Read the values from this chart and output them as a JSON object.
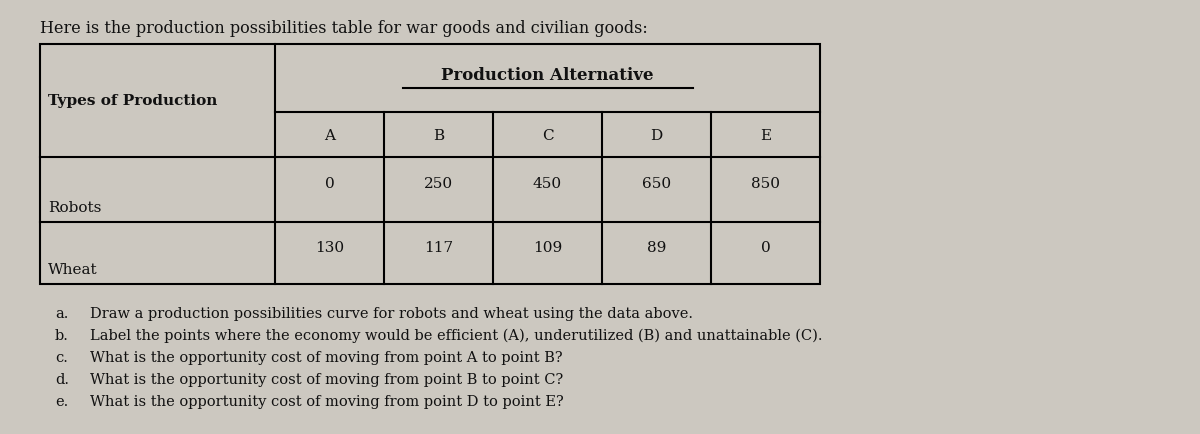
{
  "title": "Here is the production possibilities table for war goods and civilian goods:",
  "header_span": "Production Alternative",
  "col_header": "Types of Production",
  "alternatives": [
    "A",
    "B",
    "C",
    "D",
    "E"
  ],
  "rows": [
    {
      "label": "Robots",
      "values": [
        "0",
        "250",
        "450",
        "650",
        "850"
      ]
    },
    {
      "label": "Wheat",
      "values": [
        "130",
        "117",
        "109",
        "89",
        "0"
      ]
    }
  ],
  "questions": [
    [
      "a.",
      "Draw a production possibilities curve for robots and wheat using the data above."
    ],
    [
      "b.",
      "Label the points where the economy would be efficient (A), underutilized (B) and unattainable (C)."
    ],
    [
      "c.",
      "What is the opportunity cost of moving from point A to point B?"
    ],
    [
      "d.",
      "What is the opportunity cost of moving from point B to point C?"
    ],
    [
      "e.",
      "What is the opportunity cost of moving from point D to point E?"
    ]
  ],
  "bg_color": "#ccc8c0",
  "text_color": "#111111",
  "title_fontsize": 11.5,
  "table_fontsize": 11.0,
  "question_fontsize": 10.5
}
